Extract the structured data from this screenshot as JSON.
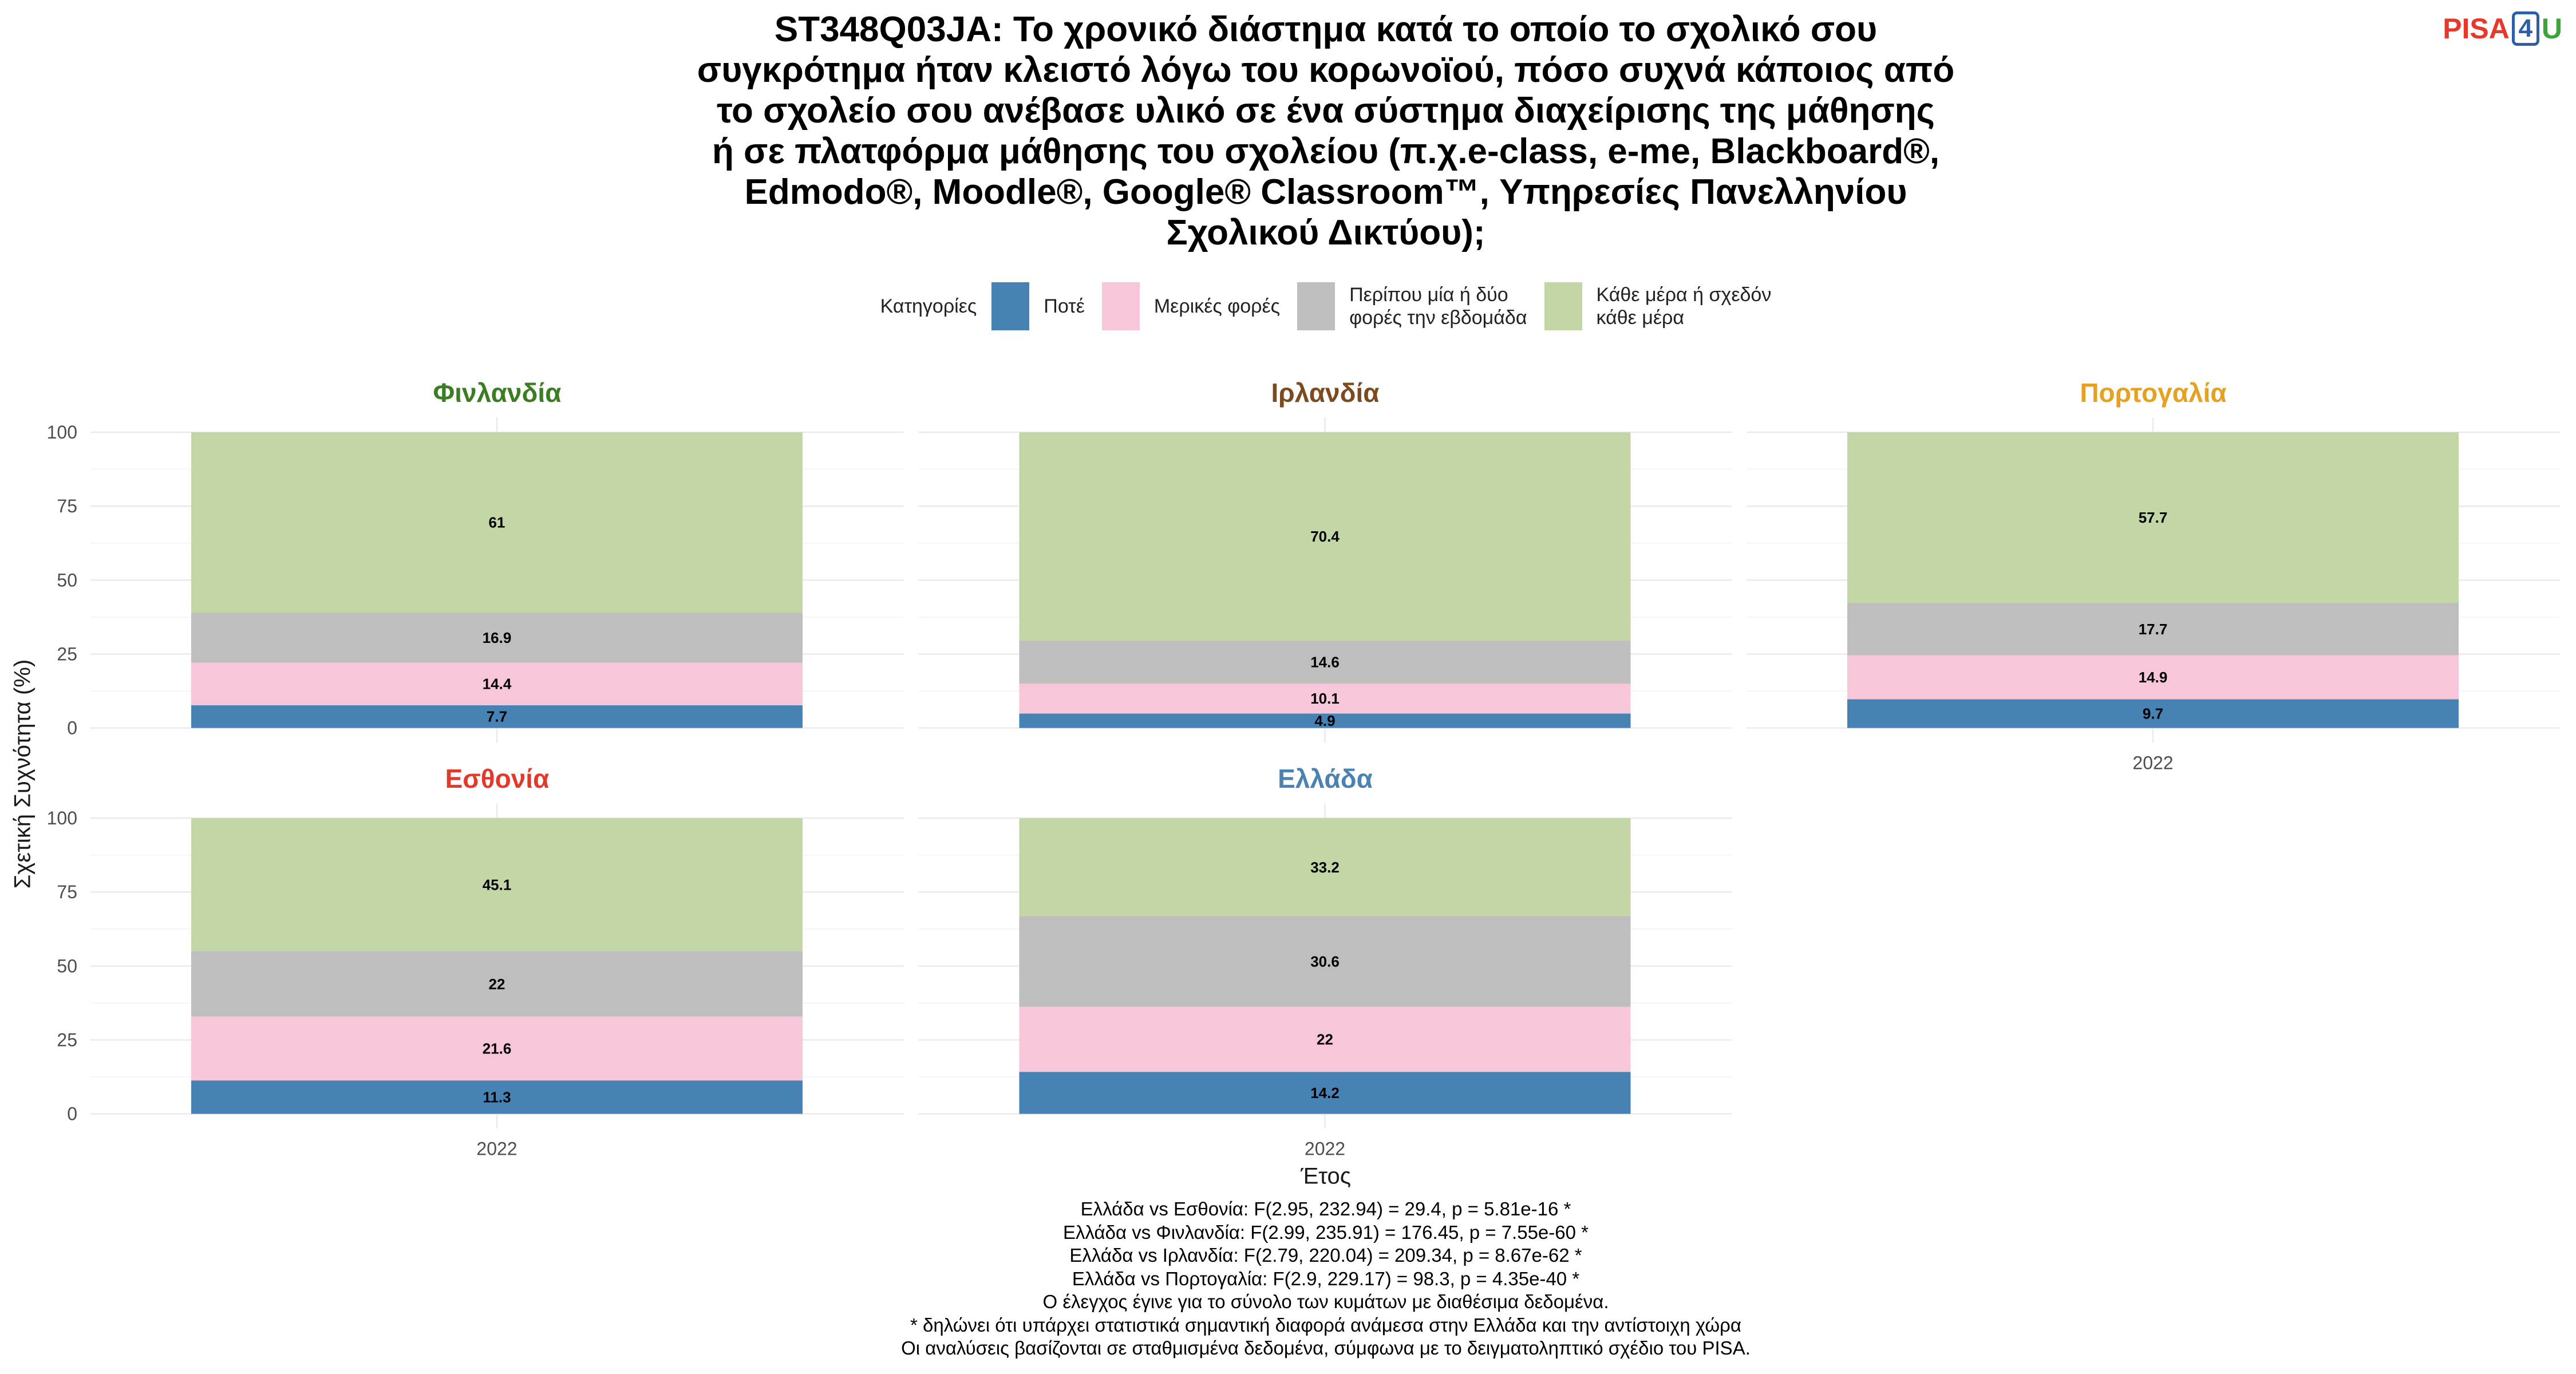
{
  "logo": {
    "part1": "PISA",
    "part2": "4",
    "part3": "U"
  },
  "chart_data": {
    "type": "bar",
    "stacked": true,
    "title_lines": [
      "ST348Q03JA: Το χρονικό διάστημα κατά το οποίο το σχολικό σου",
      "συγκρότημα ήταν κλειστό λόγω του κορωνοϊού, πόσο συχνά κάποιος από",
      "το σχολείο σου ανέβασε υλικό σε ένα σύστημα διαχείρισης της μάθησης",
      "ή σε πλατφόρμα μάθησης του σχολείου (π.χ.e-class, e-me, Blackboard®,",
      "Edmodo®, Moodle®, Google® Classroom™, Υπηρεσίες Πανελληνίου",
      "Σχολικού Δικτύου);"
    ],
    "legend_title": "Κατηγορίες",
    "legend_position": "top",
    "categories": [
      "2022"
    ],
    "series": [
      {
        "name": "Ποτέ",
        "color": "#4682B4"
      },
      {
        "name": "Μερικές φορές",
        "color": "#F7C6DA"
      },
      {
        "name": "Περίπου μία ή δύο\nφορές την εβδομάδα",
        "color": "#BEBEBE"
      },
      {
        "name": "Κάθε μέρα ή σχεδόν\nκάθε μέρα",
        "color": "#C3D6A5"
      }
    ],
    "panels": [
      {
        "name": "Φινλανδία",
        "title_color": "#3A7D22",
        "values": [
          7.7,
          14.4,
          16.9,
          61
        ]
      },
      {
        "name": "Ιρλανδία",
        "title_color": "#7B4A1E",
        "values": [
          4.9,
          10.1,
          14.6,
          70.4
        ]
      },
      {
        "name": "Πορτογαλία",
        "title_color": "#E5A11F",
        "values": [
          9.7,
          14.9,
          17.7,
          57.7
        ]
      },
      {
        "name": "Εσθονία",
        "title_color": "#E3392B",
        "values": [
          11.3,
          21.6,
          22,
          45.1
        ]
      },
      {
        "name": "Ελλάδα",
        "title_color": "#4A82B4",
        "values": [
          14.2,
          22,
          30.6,
          33.2
        ]
      }
    ],
    "xlabel": "Έτος",
    "ylabel": "Σχετική Συχνότητα (%)",
    "ylim": [
      0,
      100
    ],
    "yticks": [
      0,
      25,
      50,
      75,
      100
    ],
    "grid": true
  },
  "footnotes": [
    "Ελλάδα vs Εσθονία: F(2.95, 232.94) = 29.4, p = 5.81e-16 *",
    "Ελλάδα vs Φινλανδία: F(2.99, 235.91) = 176.45, p = 7.55e-60 *",
    "Ελλάδα vs Ιρλανδία: F(2.79, 220.04) = 209.34, p = 8.67e-62 *",
    "Ελλάδα vs Πορτογαλία: F(2.9, 229.17) = 98.3, p = 4.35e-40 *",
    "Ο έλεγχος έγινε για το σύνολο των κυμάτων με διαθέσιμα δεδομένα.",
    "* δηλώνει ότι υπάρχει στατιστικά σημαντική διαφορά ανάμεσα στην Ελλάδα και την αντίστοιχη χώρα",
    "Οι αναλύσεις βασίζονται σε σταθμισμένα δεδομένα, σύμφωνα με το δειγματοληπτικό σχέδιο του PISA."
  ]
}
